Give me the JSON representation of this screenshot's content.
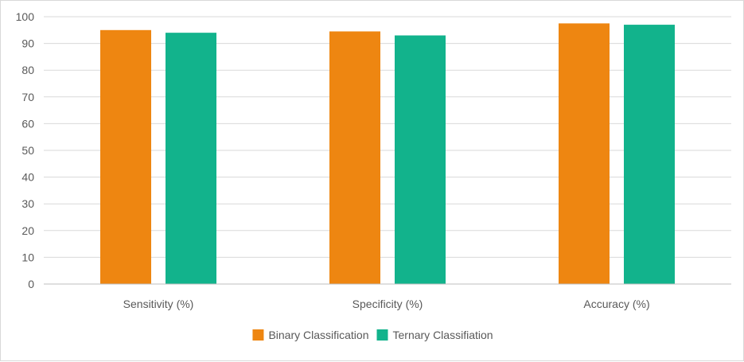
{
  "chart_data": {
    "type": "bar",
    "categories": [
      "Sensitivity (%)",
      "Specificity (%)",
      "Accuracy (%)"
    ],
    "series": [
      {
        "name": "Binary Classification",
        "values": [
          95,
          94.5,
          97.5
        ],
        "color": "#ee8611"
      },
      {
        "name": "Ternary Classifiation",
        "values": [
          94,
          93,
          97
        ],
        "color": "#12b38c"
      }
    ],
    "ylim": [
      0,
      100
    ],
    "yticks": [
      0,
      10,
      20,
      30,
      40,
      50,
      60,
      70,
      80,
      90,
      100
    ],
    "grid": true,
    "legend": "bottom-center",
    "gridline_color": "#d9d9d9",
    "axis_color": "#bfbfbf",
    "text_color": "#595959"
  }
}
